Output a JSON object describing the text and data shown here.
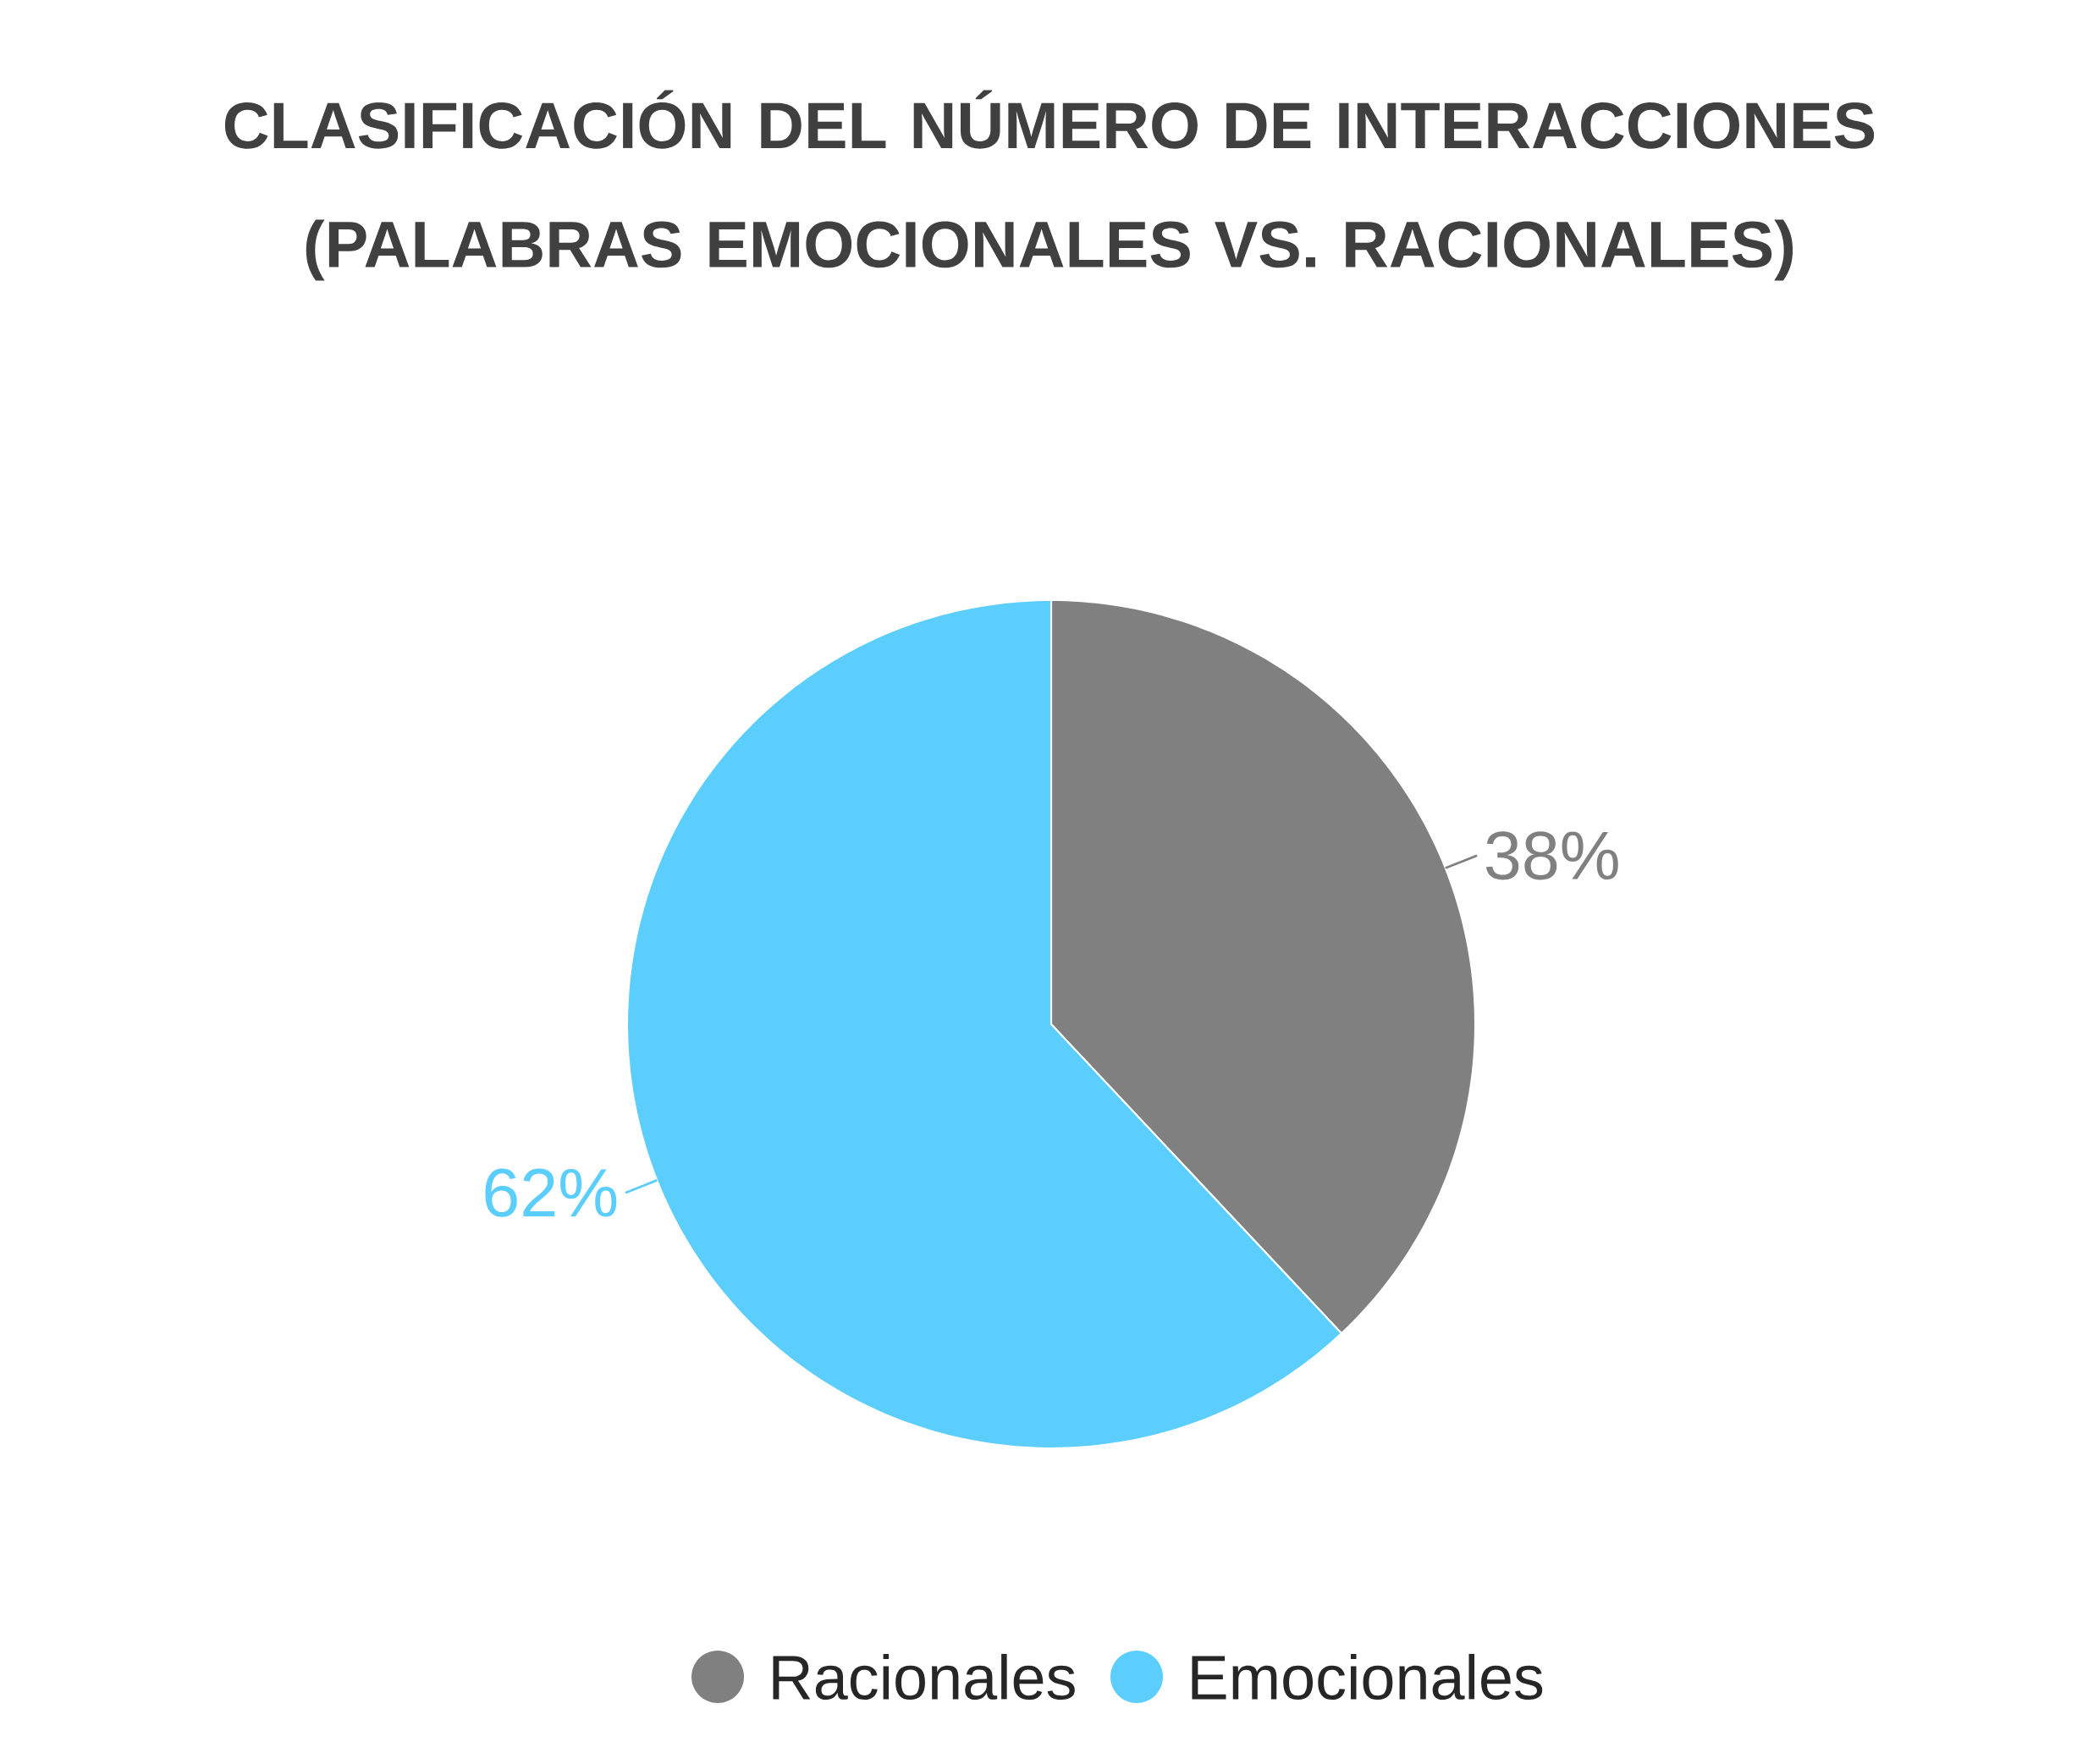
{
  "chart_data": {
    "type": "pie",
    "title": "CLASIFICACIÓN DEL NÚMERO DE INTERACCIONES (PALABRAS EMOCIONALES VS. RACIONALES)",
    "categories": [
      "Racionales",
      "Emocionales"
    ],
    "values": [
      38,
      62
    ],
    "colors": [
      "#808080",
      "#5bcefd"
    ],
    "value_labels": [
      "38%",
      "62%"
    ],
    "legend": "bottom"
  }
}
